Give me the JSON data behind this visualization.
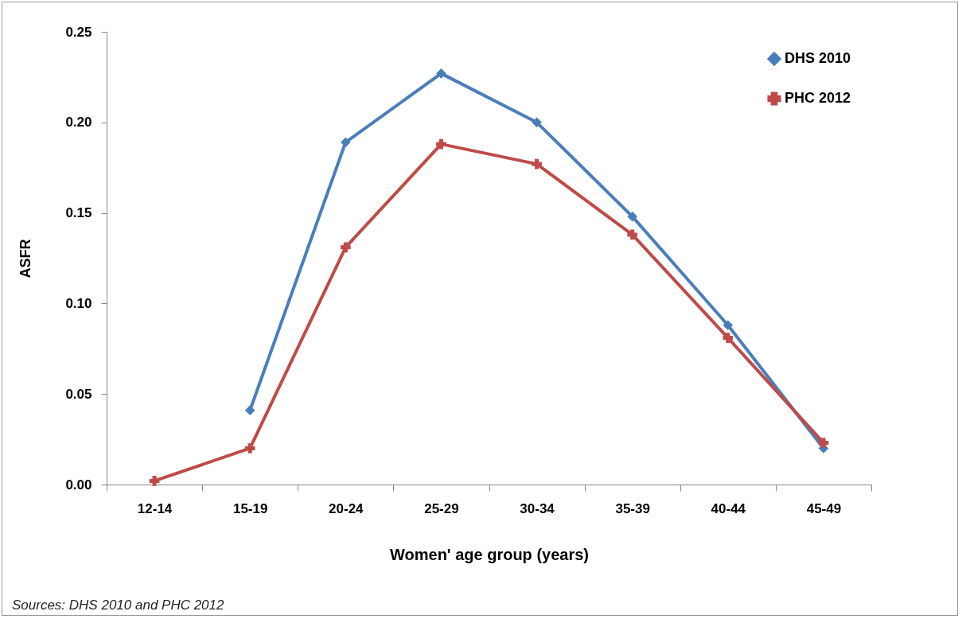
{
  "chart_data": {
    "type": "line",
    "xlabel": "Women' age group (years)",
    "ylabel": "ASFR",
    "categories": [
      "12-14",
      "15-19",
      "20-24",
      "25-29",
      "30-34",
      "35-39",
      "40-44",
      "45-49"
    ],
    "series": [
      {
        "name": "DHS 2010",
        "color": "#4a7ebb",
        "marker": "diamond",
        "values": [
          null,
          0.041,
          0.189,
          0.227,
          0.2,
          0.148,
          0.088,
          0.02
        ]
      },
      {
        "name": "PHC 2012",
        "color": "#be4b48",
        "marker": "cross",
        "values": [
          0.002,
          0.02,
          0.131,
          0.188,
          0.177,
          0.138,
          0.081,
          0.023
        ]
      }
    ],
    "ylim": [
      0,
      0.25
    ],
    "yticks": [
      {
        "value": 0,
        "label": "0.00"
      },
      {
        "value": 0.05,
        "label": "0.05"
      },
      {
        "value": 0.1,
        "label": "0.10"
      },
      {
        "value": 0.15,
        "label": "0.15"
      },
      {
        "value": 0.2,
        "label": "0.20"
      },
      {
        "value": 0.25,
        "label": "0.25"
      }
    ],
    "grid": false,
    "legend": "top right",
    "line_style": "solid",
    "annotations": [
      "Sources: DHS 2010 and PHC 2012"
    ]
  }
}
